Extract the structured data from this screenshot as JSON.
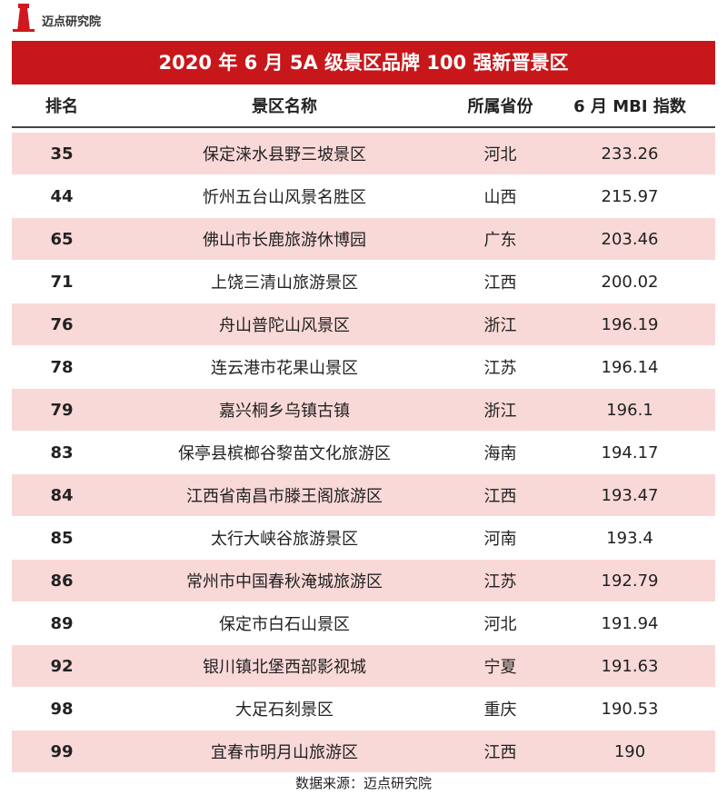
{
  "header": {
    "logo_text": "迈点研究院",
    "title": "2020 年 6 月 5A 级景区品牌 100 强新晋景区"
  },
  "table": {
    "columns": [
      "排名",
      "景区名称",
      "所属省份",
      "6 月 MBI 指数"
    ],
    "rows": [
      [
        35,
        "保定涞水县野三坡景区",
        "河北",
        233.26
      ],
      [
        44,
        "忻州五台山风景名胜区",
        "山西",
        215.97
      ],
      [
        65,
        "佛山市长鹿旅游休博园",
        "广东",
        203.46
      ],
      [
        71,
        "上饶三清山旅游景区",
        "江西",
        200.02
      ],
      [
        76,
        "舟山普陀山风景区",
        "浙江",
        196.19
      ],
      [
        78,
        "连云港市花果山景区",
        "江苏",
        196.14
      ],
      [
        79,
        "嘉兴桐乡乌镇古镇",
        "浙江",
        196.1
      ],
      [
        83,
        "保亭县槟榔谷黎苗文化旅游区",
        "海南",
        194.17
      ],
      [
        84,
        "江西省南昌市滕王阁旅游区",
        "江西",
        193.47
      ],
      [
        85,
        "太行大峡谷旅游景区",
        "河南",
        193.4
      ],
      [
        86,
        "常州市中国春秋淹城旅游区",
        "江苏",
        192.79
      ],
      [
        89,
        "保定市白石山景区",
        "河北",
        191.94
      ],
      [
        92,
        "银川镇北堡西部影视城",
        "宁夏",
        191.63
      ],
      [
        98,
        "大足石刻景区",
        "重庆",
        190.53
      ],
      [
        99,
        "宜春市明月山旅游区",
        "江西",
        190
      ]
    ]
  },
  "footer": {
    "source": "数据来源：迈点研究院"
  }
}
